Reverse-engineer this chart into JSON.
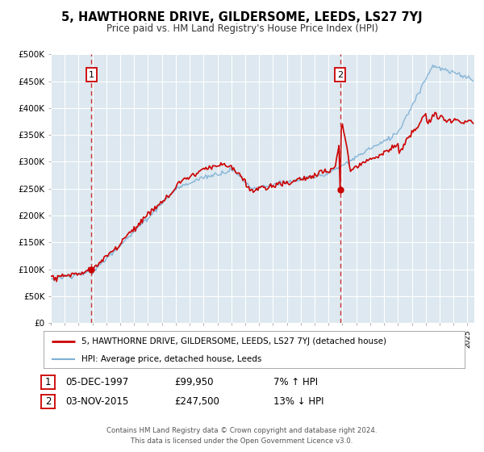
{
  "title": "5, HAWTHORNE DRIVE, GILDERSOME, LEEDS, LS27 7YJ",
  "subtitle": "Price paid vs. HM Land Registry's House Price Index (HPI)",
  "property_label": "5, HAWTHORNE DRIVE, GILDERSOME, LEEDS, LS27 7YJ (detached house)",
  "hpi_label": "HPI: Average price, detached house, Leeds",
  "sale1_date": "05-DEC-1997",
  "sale1_price": 99950,
  "sale1_hpi_pct": "7% ↑ HPI",
  "sale2_date": "03-NOV-2015",
  "sale2_price": 247500,
  "sale2_hpi_pct": "13% ↓ HPI",
  "sale1_year": 1997.92,
  "sale2_year": 2015.84,
  "property_color": "#cc0000",
  "hpi_color": "#7eb0d4",
  "background_color": "#dde8f0",
  "plot_bg_color": "#dde8f0",
  "grid_color": "#ffffff",
  "vline_color": "#cc3333",
  "footer_text": "Contains HM Land Registry data © Crown copyright and database right 2024.\nThis data is licensed under the Open Government Licence v3.0.",
  "ylim": [
    0,
    500000
  ],
  "yticks": [
    0,
    50000,
    100000,
    150000,
    200000,
    250000,
    300000,
    350000,
    400000,
    450000,
    500000
  ],
  "xmin": 1995.0,
  "xmax": 2025.5
}
